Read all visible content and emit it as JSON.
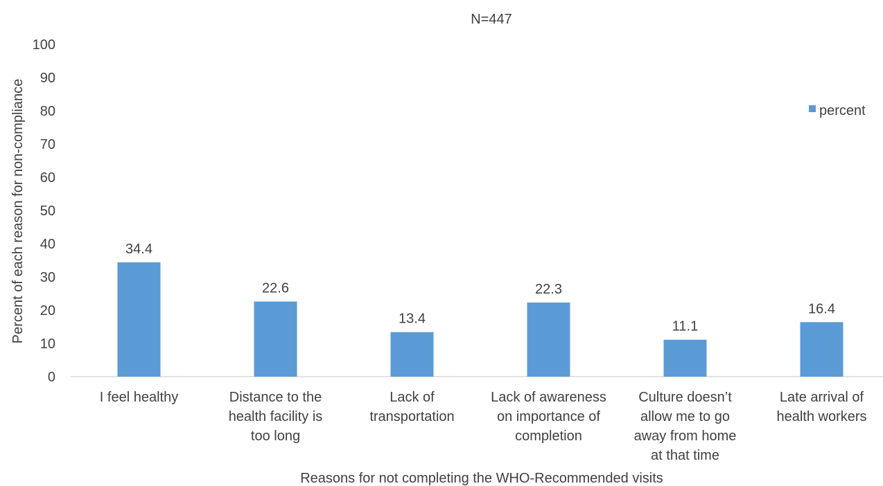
{
  "chart_data": {
    "type": "bar",
    "title": "N=447",
    "xlabel": "Reasons for not completing the WHO-Recommended  visits",
    "ylabel": "Percent of each reason for non-compliance",
    "ylim": [
      0,
      100
    ],
    "yticks": [
      0,
      10,
      20,
      30,
      40,
      50,
      60,
      70,
      80,
      90,
      100
    ],
    "grid": false,
    "legend": "right",
    "bar_color": "#5B9BD5",
    "categories": [
      [
        "I feel healthy"
      ],
      [
        "Distance to the",
        "health facility is",
        "too long"
      ],
      [
        "Lack of",
        "transportation"
      ],
      [
        "Lack of awareness",
        "on importance of",
        "completion"
      ],
      [
        "Culture doesn’t",
        "allow me to go",
        "away from home",
        "at that time"
      ],
      [
        "Late arrival of",
        "health workers"
      ]
    ],
    "series": [
      {
        "name": "percent",
        "values": [
          34.4,
          22.6,
          13.4,
          22.3,
          11.1,
          16.4
        ]
      }
    ]
  }
}
